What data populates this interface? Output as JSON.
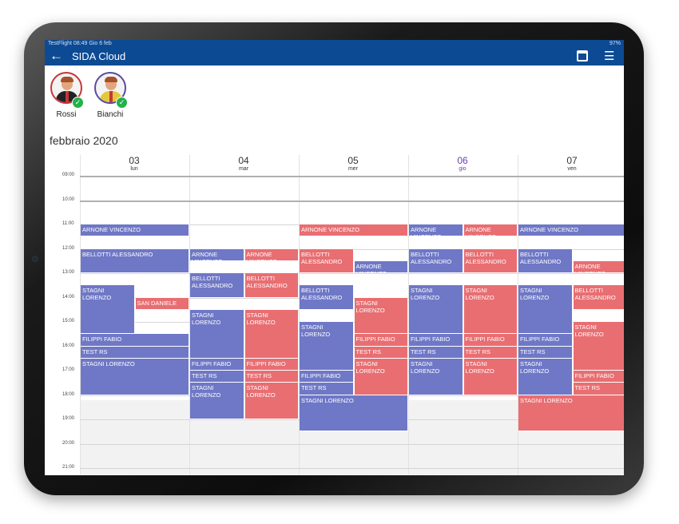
{
  "status_bar": {
    "left": "TestFlight  08:49  Gio 6 feb",
    "right": "97%"
  },
  "app_bar": {
    "title": "SIDA Cloud",
    "back_icon": "arrow-left-icon",
    "calendar_icon": "calendar-icon",
    "people_icon": "people-list-icon"
  },
  "users": [
    {
      "name": "Rossi",
      "border": "#c8353b"
    },
    {
      "name": "Bianchi",
      "border": "#5a4aa0"
    }
  ],
  "month_label": "febbraio 2020",
  "days": [
    {
      "num": "03",
      "name": "lun"
    },
    {
      "num": "04",
      "name": "mar"
    },
    {
      "num": "05",
      "name": "mer"
    },
    {
      "num": "06",
      "name": "gio",
      "today": true
    },
    {
      "num": "07",
      "name": "ven"
    }
  ],
  "hours": [
    "09:00",
    "10:00",
    "11:00",
    "12:00",
    "13:00",
    "14:00",
    "15:00",
    "16:00",
    "17:00",
    "18:00",
    "19:00",
    "20:00",
    "21:00"
  ],
  "colors": {
    "rossi": "#e86e72",
    "bianchi": "#6f78c6",
    "header": "#0d4a94",
    "today": "#6b3fb0"
  },
  "events": [
    {
      "day": 0,
      "lane": "full",
      "start": 11.0,
      "end": 11.5,
      "color": "b",
      "label": "ARNONE VINCENZO"
    },
    {
      "day": 0,
      "lane": "full",
      "start": 12.0,
      "end": 13.0,
      "color": "b",
      "label": "BELLOTTI ALESSANDRO"
    },
    {
      "day": 0,
      "lane": "left",
      "start": 13.5,
      "end": 15.5,
      "color": "b",
      "label": "STAGNI LORENZO"
    },
    {
      "day": 0,
      "lane": "right",
      "start": 14.0,
      "end": 14.5,
      "color": "r",
      "label": "SAN DANIELE"
    },
    {
      "day": 0,
      "lane": "full",
      "start": 15.5,
      "end": 16.0,
      "color": "b",
      "label": "FILIPPI FABIO"
    },
    {
      "day": 0,
      "lane": "full",
      "start": 16.0,
      "end": 16.5,
      "color": "b",
      "label": "TEST RS"
    },
    {
      "day": 0,
      "lane": "full",
      "start": 16.5,
      "end": 18.0,
      "color": "b",
      "label": "STAGNI LORENZO"
    },
    {
      "day": 1,
      "lane": "left",
      "start": 12.0,
      "end": 12.5,
      "color": "b",
      "label": "ARNONE VINCENZO"
    },
    {
      "day": 1,
      "lane": "right",
      "start": 12.0,
      "end": 12.5,
      "color": "r",
      "label": "ARNONE VINCENZO"
    },
    {
      "day": 1,
      "lane": "left",
      "start": 13.0,
      "end": 14.0,
      "color": "b",
      "label": "BELLOTTI ALESSANDRO"
    },
    {
      "day": 1,
      "lane": "right",
      "start": 13.0,
      "end": 14.0,
      "color": "r",
      "label": "BELLOTTI ALESSANDRO"
    },
    {
      "day": 1,
      "lane": "left",
      "start": 14.5,
      "end": 16.5,
      "color": "b",
      "label": "STAGNI LORENZO"
    },
    {
      "day": 1,
      "lane": "right",
      "start": 14.5,
      "end": 16.5,
      "color": "r",
      "label": "STAGNI LORENZO"
    },
    {
      "day": 1,
      "lane": "left",
      "start": 16.5,
      "end": 17.0,
      "color": "b",
      "label": "FILIPPI FABIO"
    },
    {
      "day": 1,
      "lane": "right",
      "start": 16.5,
      "end": 17.0,
      "color": "r",
      "label": "FILIPPI FABIO"
    },
    {
      "day": 1,
      "lane": "left",
      "start": 17.0,
      "end": 17.5,
      "color": "b",
      "label": "TEST RS"
    },
    {
      "day": 1,
      "lane": "right",
      "start": 17.0,
      "end": 17.5,
      "color": "r",
      "label": "TEST RS"
    },
    {
      "day": 1,
      "lane": "left",
      "start": 17.5,
      "end": 19.0,
      "color": "b",
      "label": "STAGNI LORENZO"
    },
    {
      "day": 1,
      "lane": "right",
      "start": 17.5,
      "end": 19.0,
      "color": "r",
      "label": "STAGNI LORENZO"
    },
    {
      "day": 2,
      "lane": "full",
      "start": 11.0,
      "end": 11.5,
      "color": "r",
      "label": "ARNONE VINCENZO"
    },
    {
      "day": 2,
      "lane": "left",
      "start": 12.0,
      "end": 13.0,
      "color": "r",
      "label": "BELLOTTI ALESSANDRO"
    },
    {
      "day": 2,
      "lane": "right",
      "start": 12.5,
      "end": 13.0,
      "color": "b",
      "label": "ARNONE VINCENZO"
    },
    {
      "day": 2,
      "lane": "left",
      "start": 13.5,
      "end": 14.5,
      "color": "b",
      "label": "BELLOTTI ALESSANDRO"
    },
    {
      "day": 2,
      "lane": "right",
      "start": 14.0,
      "end": 15.5,
      "color": "r",
      "label": "STAGNI LORENZO"
    },
    {
      "day": 2,
      "lane": "left",
      "start": 15.0,
      "end": 17.0,
      "color": "b",
      "label": "STAGNI LORENZO"
    },
    {
      "day": 2,
      "lane": "right",
      "start": 15.5,
      "end": 16.0,
      "color": "r",
      "label": "FILIPPI FABIO"
    },
    {
      "day": 2,
      "lane": "right",
      "start": 16.0,
      "end": 16.5,
      "color": "r",
      "label": "TEST RS"
    },
    {
      "day": 2,
      "lane": "right",
      "start": 16.5,
      "end": 18.0,
      "color": "r",
      "label": "STAGNI LORENZO"
    },
    {
      "day": 2,
      "lane": "left",
      "start": 17.0,
      "end": 17.5,
      "color": "b",
      "label": "FILIPPI FABIO"
    },
    {
      "day": 2,
      "lane": "left",
      "start": 17.5,
      "end": 18.0,
      "color": "b",
      "label": "TEST RS"
    },
    {
      "day": 2,
      "lane": "full",
      "start": 18.0,
      "end": 19.5,
      "color": "b",
      "label": "STAGNI LORENZO"
    },
    {
      "day": 3,
      "lane": "left",
      "start": 11.0,
      "end": 11.5,
      "color": "b",
      "label": "ARNONE VINCENZO"
    },
    {
      "day": 3,
      "lane": "right",
      "start": 11.0,
      "end": 11.5,
      "color": "r",
      "label": "ARNONE VINCENZO"
    },
    {
      "day": 3,
      "lane": "left",
      "start": 12.0,
      "end": 13.0,
      "color": "b",
      "label": "BELLOTTI ALESSANDRO"
    },
    {
      "day": 3,
      "lane": "right",
      "start": 12.0,
      "end": 13.0,
      "color": "r",
      "label": "BELLOTTI ALESSANDRO"
    },
    {
      "day": 3,
      "lane": "left",
      "start": 13.5,
      "end": 15.5,
      "color": "b",
      "label": "STAGNI LORENZO"
    },
    {
      "day": 3,
      "lane": "right",
      "start": 13.5,
      "end": 15.5,
      "color": "r",
      "label": "STAGNI LORENZO"
    },
    {
      "day": 3,
      "lane": "left",
      "start": 15.5,
      "end": 16.0,
      "color": "b",
      "label": "FILIPPI FABIO"
    },
    {
      "day": 3,
      "lane": "right",
      "start": 15.5,
      "end": 16.0,
      "color": "r",
      "label": "FILIPPI FABIO"
    },
    {
      "day": 3,
      "lane": "left",
      "start": 16.0,
      "end": 16.5,
      "color": "b",
      "label": "TEST RS"
    },
    {
      "day": 3,
      "lane": "right",
      "start": 16.0,
      "end": 16.5,
      "color": "r",
      "label": "TEST RS"
    },
    {
      "day": 3,
      "lane": "left",
      "start": 16.5,
      "end": 18.0,
      "color": "b",
      "label": "STAGNI LORENZO"
    },
    {
      "day": 3,
      "lane": "right",
      "start": 16.5,
      "end": 18.0,
      "color": "r",
      "label": "STAGNI LORENZO"
    },
    {
      "day": 4,
      "lane": "full",
      "start": 11.0,
      "end": 11.5,
      "color": "b",
      "label": "ARNONE VINCENZO"
    },
    {
      "day": 4,
      "lane": "left",
      "start": 12.0,
      "end": 13.0,
      "color": "b",
      "label": "BELLOTTI ALESSANDRO"
    },
    {
      "day": 4,
      "lane": "right",
      "start": 12.5,
      "end": 13.0,
      "color": "r",
      "label": "ARNONE VINCENZO"
    },
    {
      "day": 4,
      "lane": "right",
      "start": 13.5,
      "end": 14.5,
      "color": "r",
      "label": "BELLOTTI ALESSANDRO"
    },
    {
      "day": 4,
      "lane": "left",
      "start": 13.5,
      "end": 15.5,
      "color": "b",
      "label": "STAGNI LORENZO"
    },
    {
      "day": 4,
      "lane": "right",
      "start": 15.0,
      "end": 17.0,
      "color": "r",
      "label": "STAGNI LORENZO"
    },
    {
      "day": 4,
      "lane": "left",
      "start": 15.5,
      "end": 16.0,
      "color": "b",
      "label": "FILIPPI FABIO"
    },
    {
      "day": 4,
      "lane": "left",
      "start": 16.0,
      "end": 16.5,
      "color": "b",
      "label": "TEST RS"
    },
    {
      "day": 4,
      "lane": "left",
      "start": 16.5,
      "end": 18.0,
      "color": "b",
      "label": "STAGNI LORENZO"
    },
    {
      "day": 4,
      "lane": "right",
      "start": 17.0,
      "end": 17.5,
      "color": "r",
      "label": "FILIPPI FABIO"
    },
    {
      "day": 4,
      "lane": "right",
      "start": 17.5,
      "end": 18.0,
      "color": "r",
      "label": "TEST RS"
    },
    {
      "day": 4,
      "lane": "full",
      "start": 18.0,
      "end": 19.5,
      "color": "r",
      "label": "STAGNI LORENZO"
    }
  ]
}
